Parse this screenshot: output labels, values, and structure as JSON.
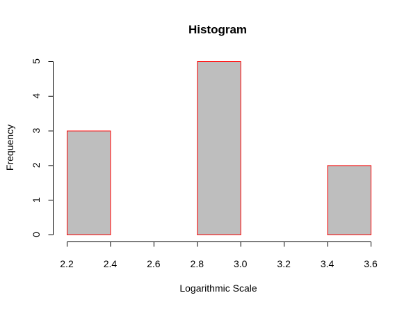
{
  "chart_data": {
    "type": "bar",
    "title": "Histogram",
    "xlabel": "Logarithmic Scale",
    "ylabel": "Frequency",
    "bins": [
      {
        "start": 2.2,
        "end": 2.4,
        "count": 3
      },
      {
        "start": 2.4,
        "end": 2.6,
        "count": 0
      },
      {
        "start": 2.6,
        "end": 2.8,
        "count": 0
      },
      {
        "start": 2.8,
        "end": 3.0,
        "count": 5
      },
      {
        "start": 3.0,
        "end": 3.2,
        "count": 0
      },
      {
        "start": 3.2,
        "end": 3.4,
        "count": 0
      },
      {
        "start": 3.4,
        "end": 3.6,
        "count": 2
      }
    ],
    "xlim": [
      2.2,
      3.6
    ],
    "ylim": [
      0,
      5
    ],
    "xticks": [
      "2.2",
      "2.4",
      "2.6",
      "2.8",
      "3.0",
      "3.2",
      "3.4",
      "3.6"
    ],
    "yticks": [
      "0",
      "1",
      "2",
      "3",
      "4",
      "5"
    ],
    "grid": false,
    "colors": {
      "bar_fill": "#bebebe",
      "bar_border": "#ff0000"
    }
  }
}
